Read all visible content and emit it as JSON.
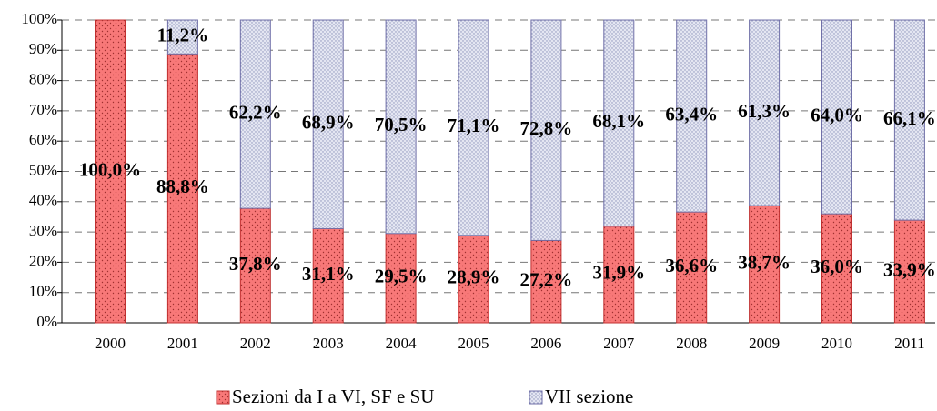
{
  "chart_data": {
    "type": "stacked_bar",
    "categories": [
      "2000",
      "2001",
      "2002",
      "2003",
      "2004",
      "2005",
      "2006",
      "2007",
      "2008",
      "2009",
      "2010",
      "2011"
    ],
    "series": [
      {
        "name": "Sezioni da I a VI, SF e SU",
        "color": "#f87878",
        "values": [
          100,
          88.8,
          37.8,
          31.1,
          29.5,
          28.9,
          27.2,
          31.9,
          36.6,
          38.7,
          36.0,
          33.9
        ],
        "value_labels": [
          "100,0%",
          "88,8%",
          "37,8%",
          "31,1%",
          "29,5%",
          "28,9%",
          "27,2%",
          "31,9%",
          "36,6%",
          "38,7%",
          "36,0%",
          "33,9%"
        ]
      },
      {
        "name": "VII sezione",
        "color": "#d6daea",
        "values": [
          0,
          11.2,
          62.2,
          68.9,
          70.5,
          71.1,
          72.8,
          68.1,
          63.4,
          61.3,
          64.0,
          66.1
        ],
        "value_labels": [
          null,
          "11,2%",
          "62,2%",
          "68,9%",
          "70,5%",
          "71,1%",
          "72,8%",
          "68,1%",
          "63,4%",
          "61,3%",
          "64,0%",
          "66,1%"
        ]
      }
    ],
    "ylim": [
      0,
      100
    ],
    "yticks": [
      {
        "value": 0,
        "label": "0%"
      },
      {
        "value": 10,
        "label": "10%"
      },
      {
        "value": 20,
        "label": "20%"
      },
      {
        "value": 30,
        "label": "30%"
      },
      {
        "value": 40,
        "label": "40%"
      },
      {
        "value": 50,
        "label": "50%"
      },
      {
        "value": 60,
        "label": "60%"
      },
      {
        "value": 70,
        "label": "70%"
      },
      {
        "value": 80,
        "label": "80%"
      },
      {
        "value": 90,
        "label": "90%"
      },
      {
        "value": 100,
        "label": "100%"
      }
    ],
    "grid": true,
    "legend": "bottom"
  }
}
